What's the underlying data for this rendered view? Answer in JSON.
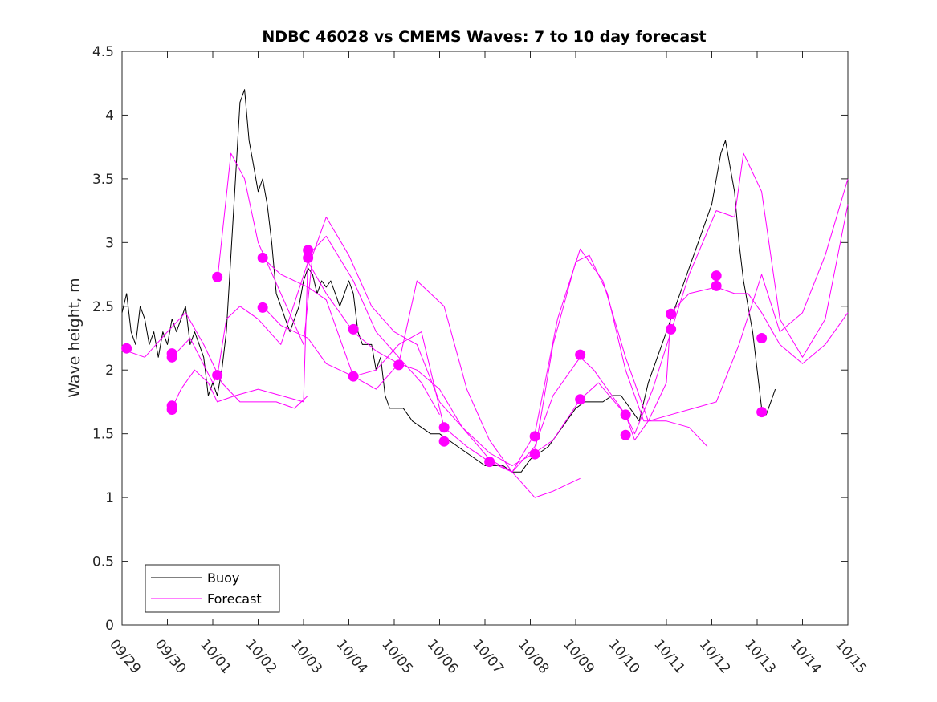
{
  "chart_data": {
    "type": "line",
    "title": "NDBC 46028 vs CMEMS Waves: 7 to 10 day forecast",
    "xlabel": "",
    "ylabel": "Wave height, m",
    "xlim": [
      0,
      16
    ],
    "ylim": [
      0,
      4.5
    ],
    "x_unit": "days since 09/29",
    "x_tick_labels": [
      "09/29",
      "09/30",
      "10/01",
      "10/02",
      "10/03",
      "10/04",
      "10/05",
      "10/06",
      "10/07",
      "10/08",
      "10/09",
      "10/10",
      "10/11",
      "10/12",
      "10/13",
      "10/14",
      "10/15"
    ],
    "y_ticks": [
      0,
      0.5,
      1,
      1.5,
      2,
      2.5,
      3,
      3.5,
      4,
      4.5
    ],
    "y_tick_labels": [
      "0",
      "0.5",
      "1",
      "1.5",
      "2",
      "2.5",
      "3",
      "3.5",
      "4",
      "4.5"
    ],
    "legend": {
      "location": "bottom-left",
      "entries": [
        "Buoy",
        "Forecast"
      ]
    },
    "colors": {
      "buoy": "#000000",
      "forecast": "#ff00ff"
    },
    "series": [
      {
        "name": "Buoy",
        "x": [
          0.0,
          0.1,
          0.2,
          0.3,
          0.4,
          0.5,
          0.6,
          0.7,
          0.8,
          0.9,
          1.0,
          1.1,
          1.2,
          1.3,
          1.4,
          1.5,
          1.6,
          1.7,
          1.8,
          1.9,
          2.0,
          2.1,
          2.2,
          2.3,
          2.4,
          2.5,
          2.6,
          2.7,
          2.8,
          2.9,
          3.0,
          3.1,
          3.2,
          3.3,
          3.4,
          3.5,
          3.6,
          3.7,
          3.8,
          3.9,
          4.0,
          4.1,
          4.2,
          4.3,
          4.4,
          4.5,
          4.6,
          4.7,
          4.8,
          4.9,
          5.0,
          5.1,
          5.2,
          5.3,
          5.4,
          5.5,
          5.6,
          5.7,
          5.8,
          5.9,
          6.0,
          6.2,
          6.4,
          6.6,
          6.8,
          7.0,
          7.2,
          7.4,
          7.6,
          7.8,
          8.0,
          8.2,
          8.4,
          8.6,
          8.8,
          9.0,
          9.2,
          9.4,
          9.6,
          9.8,
          10.0,
          10.2,
          10.4,
          10.6,
          10.8,
          11.0,
          11.2,
          11.4,
          11.6,
          11.8,
          12.0,
          12.2,
          12.4,
          12.6,
          12.8,
          13.0,
          13.1,
          13.2,
          13.3,
          13.4,
          13.5,
          13.6,
          13.7,
          13.8,
          13.9,
          14.0,
          14.1,
          14.2,
          14.3,
          14.4
        ],
        "y": [
          2.45,
          2.6,
          2.3,
          2.2,
          2.5,
          2.4,
          2.2,
          2.3,
          2.1,
          2.3,
          2.2,
          2.4,
          2.3,
          2.4,
          2.5,
          2.2,
          2.3,
          2.2,
          2.1,
          1.8,
          1.9,
          1.8,
          2.0,
          2.3,
          2.9,
          3.5,
          4.1,
          4.2,
          3.8,
          3.6,
          3.4,
          3.5,
          3.3,
          3.0,
          2.6,
          2.5,
          2.4,
          2.3,
          2.4,
          2.5,
          2.7,
          2.8,
          2.75,
          2.6,
          2.7,
          2.65,
          2.7,
          2.6,
          2.5,
          2.6,
          2.7,
          2.6,
          2.3,
          2.2,
          2.2,
          2.2,
          2.0,
          2.1,
          1.8,
          1.7,
          1.7,
          1.7,
          1.6,
          1.55,
          1.5,
          1.5,
          1.45,
          1.4,
          1.35,
          1.3,
          1.25,
          1.25,
          1.25,
          1.2,
          1.2,
          1.3,
          1.35,
          1.4,
          1.5,
          1.6,
          1.7,
          1.75,
          1.75,
          1.75,
          1.8,
          1.8,
          1.7,
          1.6,
          1.9,
          2.1,
          2.3,
          2.5,
          2.7,
          2.9,
          3.1,
          3.3,
          3.5,
          3.7,
          3.8,
          3.6,
          3.4,
          3.0,
          2.7,
          2.5,
          2.3,
          2.0,
          1.7,
          1.65,
          1.75,
          1.85
        ]
      },
      {
        "name": "Forecast",
        "x": [
          0.1,
          0.5,
          1.0,
          1.4,
          1.8,
          2.2,
          2.6,
          3.0,
          3.4,
          3.8,
          4.1,
          4.5,
          5.1,
          5.6,
          6.1,
          6.6,
          7.1,
          7.6,
          8.1,
          8.6,
          9.1,
          9.6,
          10.1,
          10.6,
          11.1,
          11.6,
          12.1,
          12.6,
          13.1,
          13.6,
          14.1,
          14.5,
          15.0,
          15.5,
          16.0
        ],
        "y": [
          2.15,
          2.1,
          2.3,
          2.45,
          2.2,
          1.9,
          1.75,
          1.75,
          1.75,
          1.7,
          1.8,
          null,
          null,
          null,
          null,
          null,
          null,
          null,
          null,
          null,
          null,
          null,
          null,
          null,
          null,
          null,
          null,
          null,
          null,
          null,
          null,
          null,
          null,
          null,
          null
        ]
      },
      {
        "name": "Forecast",
        "x": [
          1.1,
          1.3,
          1.6,
          1.9,
          2.1,
          2.5,
          3.0,
          3.5,
          4.0,
          4.1,
          4.5,
          5.1,
          5.6,
          6.1,
          6.6,
          7.0
        ],
        "y": [
          1.7,
          1.85,
          2.0,
          1.9,
          1.75,
          1.8,
          1.85,
          1.8,
          1.75,
          2.9,
          3.05,
          2.7,
          2.3,
          2.1,
          1.9,
          1.65
        ]
      },
      {
        "name": "Forecast",
        "x": [
          1.1,
          1.5,
          2.0,
          2.1,
          2.3,
          2.6,
          3.0,
          3.5,
          4.1,
          4.5,
          5.1,
          5.6,
          6.1,
          6.5,
          7.0,
          7.5,
          8.1,
          8.6,
          9.1,
          9.5,
          10.1,
          10.4,
          10.8,
          11.1
        ],
        "y": [
          2.1,
          2.25,
          1.9,
          1.95,
          2.4,
          2.5,
          2.4,
          2.2,
          2.85,
          2.6,
          2.3,
          2.15,
          2.05,
          2.0,
          1.85,
          1.55,
          1.3,
          1.2,
          1.4,
          1.8,
          2.1,
          2.0,
          1.8,
          1.65
        ]
      },
      {
        "name": "Forecast",
        "x": [
          2.1,
          2.4,
          2.7,
          3.0,
          3.5,
          4.0,
          4.2,
          4.5,
          5.0,
          5.5,
          6.0,
          6.5,
          7.0,
          7.5,
          8.1,
          8.6,
          9.1,
          9.5,
          10.0,
          10.3,
          10.7,
          11.1,
          11.5,
          12.0,
          12.5,
          12.9
        ],
        "y": [
          2.7,
          3.7,
          3.5,
          3.0,
          2.6,
          2.2,
          2.9,
          3.2,
          2.9,
          2.5,
          2.3,
          2.2,
          1.75,
          1.55,
          1.35,
          1.25,
          1.35,
          2.2,
          2.85,
          2.9,
          2.6,
          2.0,
          1.6,
          1.6,
          1.55,
          1.4
        ]
      },
      {
        "name": "Forecast",
        "x": [
          3.1,
          3.5,
          4.1,
          4.5,
          5.1,
          5.6,
          6.1,
          6.6,
          7.1,
          7.6,
          8.1,
          8.6,
          9.1,
          9.6,
          10.1,
          10.6,
          11.1,
          11.6,
          12.1,
          12.6,
          13.1,
          13.6,
          14.1,
          14.5,
          15.0,
          15.5,
          16.0
        ],
        "y": [
          2.88,
          2.75,
          2.65,
          2.55,
          1.95,
          2.0,
          2.2,
          2.3,
          1.55,
          1.4,
          1.28,
          1.2,
          1.5,
          2.4,
          2.95,
          2.7,
          2.1,
          1.6,
          1.65,
          1.7,
          1.75,
          2.2,
          2.75,
          2.3,
          2.45,
          2.9,
          3.5
        ]
      },
      {
        "name": "Forecast",
        "x": [
          3.1,
          3.5,
          4.1,
          4.5,
          5.1,
          5.6,
          6.1,
          6.5,
          7.1,
          7.6,
          8.1,
          8.6,
          9.1,
          9.5,
          10.1,
          10.5,
          11.1,
          11.5,
          12.1,
          12.5,
          13.1,
          13.4,
          13.7,
          14.1,
          14.5,
          15.0,
          15.5,
          16.0
        ],
        "y": [
          2.5,
          2.35,
          2.25,
          2.05,
          1.95,
          1.85,
          2.05,
          2.7,
          2.5,
          1.85,
          1.45,
          1.2,
          1.0,
          1.05,
          1.15,
          null,
          null,
          null,
          null,
          null,
          null,
          null,
          null,
          null,
          null,
          null,
          null,
          null
        ]
      },
      {
        "name": "Forecast",
        "x": [
          9.1,
          9.5,
          10.1,
          10.5,
          11.1,
          11.3,
          11.7,
          12.1,
          12.5,
          13.1,
          13.5,
          13.7,
          14.1,
          14.5,
          15.0,
          15.5,
          16.0
        ],
        "y": [
          1.35,
          1.45,
          1.77,
          1.9,
          1.65,
          1.5,
          1.85,
          2.3,
          2.75,
          3.25,
          3.2,
          3.7,
          3.4,
          2.4,
          2.1,
          2.4,
          3.3
        ]
      },
      {
        "name": "Forecast",
        "x": [
          11.1,
          11.3,
          11.6,
          12.0,
          12.1,
          12.5,
          13.1,
          13.5,
          13.8,
          14.1,
          14.5,
          15.0,
          15.5,
          16.0
        ],
        "y": [
          1.65,
          1.45,
          1.6,
          1.9,
          2.45,
          2.6,
          2.65,
          2.6,
          2.6,
          2.45,
          2.2,
          2.05,
          2.2,
          2.45
        ]
      }
    ],
    "markers": {
      "name": "Forecast start points",
      "x": [
        0.1,
        1.1,
        1.1,
        1.1,
        1.1,
        2.1,
        2.1,
        3.1,
        3.1,
        4.1,
        4.1,
        5.1,
        5.1,
        6.1,
        7.1,
        7.1,
        8.1,
        9.1,
        9.1,
        10.1,
        10.1,
        11.1,
        11.1,
        12.1,
        12.1,
        13.1,
        13.1,
        14.1,
        14.1
      ],
      "y": [
        2.17,
        1.72,
        1.69,
        2.13,
        2.1,
        2.73,
        1.96,
        2.88,
        2.49,
        2.94,
        2.88,
        2.32,
        1.95,
        2.04,
        1.55,
        1.44,
        1.28,
        1.48,
        1.34,
        2.12,
        1.77,
        1.65,
        1.49,
        2.44,
        2.32,
        2.74,
        2.66,
        2.25,
        1.67
      ]
    }
  }
}
